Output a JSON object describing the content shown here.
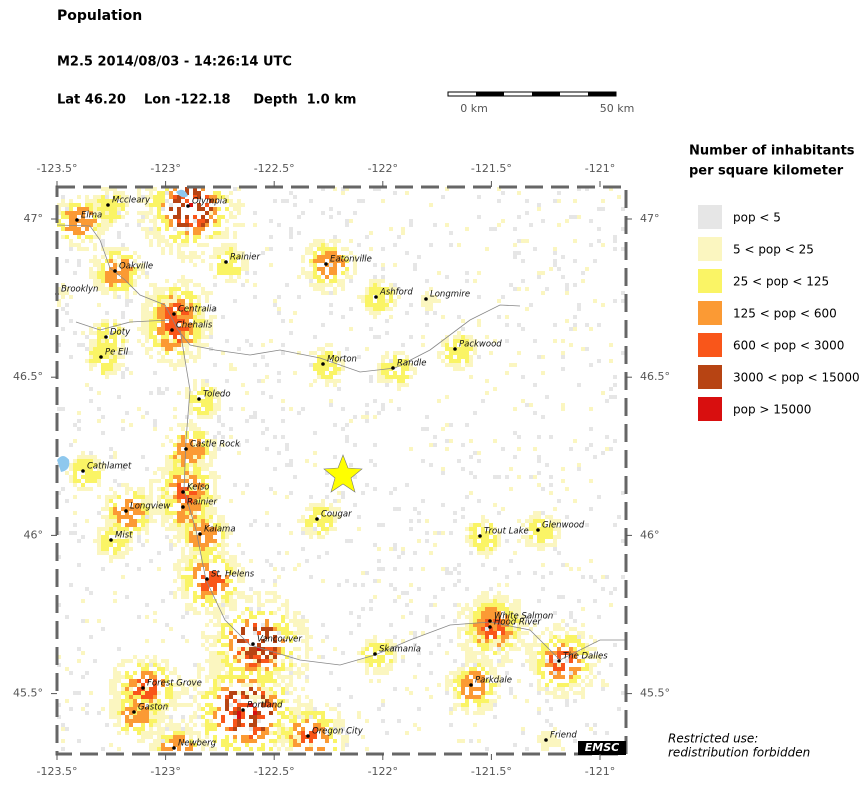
{
  "header": {
    "title": "Population",
    "event": "M2.5  2014/08/03 - 14:26:14 UTC",
    "location": "Lat 46.20    Lon -122.18     Depth  1.0 km"
  },
  "scale_bar": {
    "start": "0 km",
    "end": "50 km"
  },
  "map": {
    "lon_ticks": [
      {
        "value": -123.5,
        "label": "-123.5°"
      },
      {
        "value": -123,
        "label": "-123°"
      },
      {
        "value": -122.5,
        "label": "-122.5°"
      },
      {
        "value": -122,
        "label": "-122°"
      },
      {
        "value": -121.5,
        "label": "-121.5°"
      },
      {
        "value": -121,
        "label": "-121°"
      }
    ],
    "lat_ticks": [
      {
        "value": 47,
        "label": "47°"
      },
      {
        "value": 46.5,
        "label": "46.5°"
      },
      {
        "value": 46,
        "label": "46°"
      },
      {
        "value": 45.5,
        "label": "45.5°"
      }
    ],
    "cities": [
      "Elma",
      "Mccleary",
      "Olympia",
      "Rainier",
      "Eatonville",
      "Oakville",
      "Brooklyn",
      "Ashford",
      "Longmire",
      "Centralia",
      "Chehalis",
      "Doty",
      "Pe Ell",
      "Morton",
      "Randle",
      "Packwood",
      "Toledo",
      "Castle Rock",
      "Cathlamet",
      "Kelso",
      "Longview",
      "Rainier",
      "Cougar",
      "Trout Lake",
      "Glenwood",
      "Mist",
      "Kalama",
      "St. Helens",
      "White Salmon",
      "Hood River",
      "Vancouver",
      "Skamania",
      "The Dalles",
      "Forest Grove",
      "Parkdale",
      "Gaston",
      "Portland",
      "Oregon City",
      "Friend",
      "Newberg"
    ],
    "logo": "EMSC"
  },
  "legend": {
    "title": [
      "Number of inhabitants",
      "per square kilometer"
    ],
    "items": [
      {
        "label": "pop < 5",
        "color": "#e6e6e6"
      },
      {
        "label": "5 < pop < 25",
        "color": "#fbf6c0"
      },
      {
        "label": "25 < pop < 125",
        "color": "#faf465"
      },
      {
        "label": "125 < pop < 600",
        "color": "#fb9a34"
      },
      {
        "label": "600 < pop < 3000",
        "color": "#f9561a"
      },
      {
        "label": "3000 < pop < 15000",
        "color": "#b74413"
      },
      {
        "label": "pop > 15000",
        "color": "#d80f0f"
      }
    ]
  },
  "notice": [
    "Restricted use:",
    "redistribution forbidden"
  ]
}
